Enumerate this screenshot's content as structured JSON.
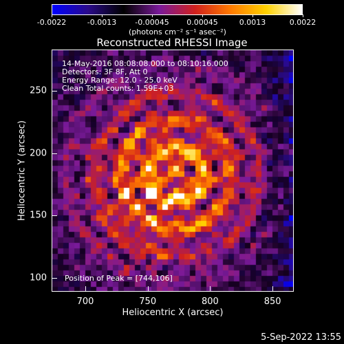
{
  "colorbar": {
    "tick_labels": [
      "-0.0022",
      "-0.0013",
      "-0.00045",
      "0.00045",
      "0.0013",
      "0.0022"
    ],
    "unit_label": "(photons cm⁻² s⁻¹ asec⁻²)",
    "colors": [
      "#0000ff",
      "#2a0a8a",
      "#000000",
      "#7a1a9a",
      "#d0201e",
      "#ff7a00",
      "#ffd200",
      "#ffffff"
    ]
  },
  "image": {
    "title": "Reconstructed RHESSI Image",
    "info_lines": [
      "14-May-2016 08:08:08.000 to 08:10:16.000",
      "Detectors: 3F 8F, Att 0",
      "Energy Range: 12.0 - 25.0 keV",
      "Clean     Total counts: 1.59E+03"
    ],
    "peak_label": "Position of Peak = [744,106]",
    "xlabel": "Heliocentric X (arcsec)",
    "ylabel": "Heliocentric Y (arcsec)",
    "x_ticks": [
      "700",
      "750",
      "800",
      "850"
    ],
    "y_ticks": [
      "250",
      "200",
      "150",
      "100"
    ],
    "x_range": [
      673,
      867
    ],
    "y_range": [
      89,
      283
    ]
  },
  "footer": {
    "date": "5-Sep-2022 13:55"
  }
}
